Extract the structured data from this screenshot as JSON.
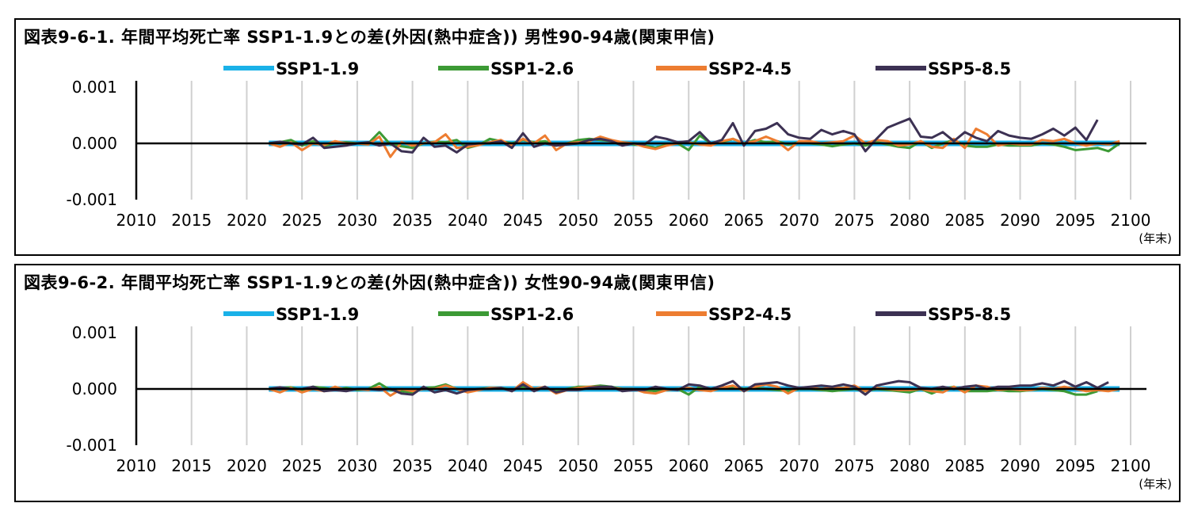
{
  "chart_data": [
    {
      "type": "line",
      "title": "図表9-6-1. 年間平均死亡率 SSP1-1.9との差(外因(熱中症含)) 男性90-94歳(関東甲信)",
      "x_unit": "(年末)",
      "legend_placement": "top",
      "grid": true,
      "xlim": [
        2010,
        2100
      ],
      "ylim": [
        -0.001,
        0.001
      ],
      "x_ticks": [
        "2010",
        "2015",
        "2020",
        "2025",
        "2030",
        "2035",
        "2040",
        "2045",
        "2050",
        "2055",
        "2060",
        "2065",
        "2070",
        "2075",
        "2080",
        "2085",
        "2090",
        "2095",
        "2100"
      ],
      "y_ticks": [
        "0.001",
        "0.000",
        "-0.001"
      ],
      "y_tick_values": [
        0.001,
        0.0,
        -0.001
      ],
      "x_start": 2022,
      "x_step": 1,
      "series": [
        {
          "name": "SSP1-1.9",
          "color": "#1ab1e8",
          "values": [
            0.0,
            0.0,
            0.0,
            0.0,
            0.0,
            0.0,
            0.0,
            0.0,
            0.0,
            0.0,
            0.0,
            0.0,
            0.0,
            0.0,
            0.0,
            0.0,
            0.0,
            0.0,
            0.0,
            0.0,
            0.0,
            0.0,
            0.0,
            0.0,
            0.0,
            0.0,
            0.0,
            0.0,
            0.0,
            0.0,
            0.0,
            0.0,
            0.0,
            0.0,
            0.0,
            0.0,
            0.0,
            0.0,
            0.0,
            0.0,
            0.0,
            0.0,
            0.0,
            0.0,
            0.0,
            0.0,
            0.0,
            0.0,
            0.0,
            0.0,
            0.0,
            0.0,
            0.0,
            0.0,
            0.0,
            0.0,
            0.0,
            0.0,
            0.0,
            0.0,
            0.0,
            0.0,
            0.0,
            0.0,
            0.0,
            0.0,
            0.0,
            0.0,
            0.0,
            0.0,
            0.0,
            0.0,
            0.0,
            0.0,
            0.0,
            0.0,
            0.0,
            0.0
          ]
        },
        {
          "name": "SSP1-2.6",
          "color": "#3c9a35",
          "values": [
            0.0,
            2e-05,
            6e-05,
            -4e-05,
            4e-05,
            -5e-05,
            1e-05,
            2e-05,
            0.0,
            0.0,
            0.0002,
            -2e-05,
            -5e-05,
            -8e-05,
            0.0,
            3e-05,
            2e-05,
            6e-05,
            -8e-05,
            -3e-05,
            8e-05,
            4e-05,
            0.0,
            6e-05,
            2e-05,
            4e-05,
            -4e-05,
            0.0,
            6e-05,
            8e-05,
            6e-05,
            4e-05,
            2e-05,
            -2e-05,
            -4e-05,
            -8e-05,
            -2e-05,
            0.0,
            -0.00012,
            0.00014,
            0.0,
            2e-05,
            8e-05,
            0.0,
            6e-05,
            2e-05,
            4e-05,
            -2e-05,
            2e-05,
            0.0,
            -2e-05,
            -5e-05,
            -2e-05,
            0.0,
            -4e-05,
            2e-05,
            -2e-05,
            -6e-05,
            -8e-05,
            4e-05,
            -8e-05,
            0.0,
            6e-05,
            -4e-05,
            -6e-05,
            -6e-05,
            -2e-05,
            -4e-05,
            -4e-05,
            -4e-05,
            0.0,
            -2e-05,
            -6e-05,
            -0.00012,
            -0.0001,
            -8e-05,
            -0.00014,
            0.0
          ]
        },
        {
          "name": "SSP2-4.5",
          "color": "#ed7d31",
          "values": [
            0.0,
            -6e-05,
            2e-05,
            -0.00012,
            0.0,
            -3e-05,
            4e-05,
            0.0,
            0.0,
            -2e-05,
            0.00012,
            -0.00024,
            2e-05,
            -4e-05,
            0.0,
            2e-05,
            0.00016,
            -8e-05,
            -6e-05,
            -3e-05,
            2e-05,
            6e-05,
            -4e-05,
            8e-05,
            0.0,
            0.00014,
            -0.00012,
            0.0,
            2e-05,
            4e-05,
            0.00012,
            6e-05,
            2e-05,
            0.0,
            -6e-05,
            -0.0001,
            -4e-05,
            0.0,
            2e-05,
            -2e-05,
            -4e-05,
            4e-05,
            8e-05,
            0.0,
            4e-05,
            0.00012,
            4e-05,
            -0.00012,
            4e-05,
            4e-05,
            0.0,
            2e-05,
            4e-05,
            0.00014,
            0.0,
            6e-05,
            4e-05,
            -4e-05,
            -2e-05,
            4e-05,
            -6e-05,
            -8e-05,
            8e-05,
            -8e-05,
            0.00026,
            0.00016,
            -4e-05,
            0.0,
            -2e-05,
            -2e-05,
            6e-05,
            4e-05,
            8e-05,
            0.0,
            -4e-05,
            0.0,
            -2e-05,
            4e-05
          ]
        },
        {
          "name": "SSP5-8.5",
          "color": "#3c3153",
          "values": [
            0.0,
            3e-05,
            0.0,
            -2e-05,
            0.0001,
            -8e-05,
            -6e-05,
            -4e-05,
            0.0,
            2e-05,
            -4e-05,
            0.0,
            -0.00014,
            -0.00016,
            0.0001,
            -6e-05,
            -4e-05,
            -0.00016,
            -2e-05,
            0.0,
            0.0,
            4e-05,
            -8e-05,
            0.00018,
            -6e-05,
            0.0,
            -4e-05,
            -2e-05,
            0.0,
            6e-05,
            8e-05,
            4e-05,
            -4e-05,
            0.0,
            -2e-05,
            0.00012,
            8e-05,
            2e-05,
            4e-05,
            0.0002,
            0.0,
            6e-05,
            0.00036,
            -4e-05,
            0.00022,
            0.00026,
            0.00036,
            0.00016,
            0.0001,
            8e-05,
            0.00024,
            0.00016,
            0.00022,
            0.00016,
            -0.00014,
            8e-05,
            0.00028,
            0.00036,
            0.00044,
            0.00012,
            0.0001,
            0.0002,
            4e-05,
            0.0002,
            0.0001,
            4e-05,
            0.00022,
            0.00014,
            0.0001,
            8e-05,
            0.00016,
            0.00026,
            0.00014,
            0.00028,
            6e-05,
            0.00042
          ]
        }
      ]
    },
    {
      "type": "line",
      "title": "図表9-6-2. 年間平均死亡率 SSP1-1.9との差(外因(熱中症含)) 女性90-94歳(関東甲信)",
      "x_unit": "(年末)",
      "legend_placement": "top",
      "grid": true,
      "xlim": [
        2010,
        2100
      ],
      "ylim": [
        -0.001,
        0.001
      ],
      "x_ticks": [
        "2010",
        "2015",
        "2020",
        "2025",
        "2030",
        "2035",
        "2040",
        "2045",
        "2050",
        "2055",
        "2060",
        "2065",
        "2070",
        "2075",
        "2080",
        "2085",
        "2090",
        "2095",
        "2100"
      ],
      "y_ticks": [
        "0.001",
        "0.000",
        "-0.001"
      ],
      "y_tick_values": [
        0.001,
        0.0,
        -0.001
      ],
      "x_start": 2022,
      "x_step": 1,
      "series": [
        {
          "name": "SSP1-1.9",
          "color": "#1ab1e8",
          "values": [
            0.0,
            0.0,
            0.0,
            0.0,
            0.0,
            0.0,
            0.0,
            0.0,
            0.0,
            0.0,
            0.0,
            0.0,
            0.0,
            0.0,
            0.0,
            0.0,
            0.0,
            0.0,
            0.0,
            0.0,
            0.0,
            0.0,
            0.0,
            0.0,
            0.0,
            0.0,
            0.0,
            0.0,
            0.0,
            0.0,
            0.0,
            0.0,
            0.0,
            0.0,
            0.0,
            0.0,
            0.0,
            0.0,
            0.0,
            0.0,
            0.0,
            0.0,
            0.0,
            0.0,
            0.0,
            0.0,
            0.0,
            0.0,
            0.0,
            0.0,
            0.0,
            0.0,
            0.0,
            0.0,
            0.0,
            0.0,
            0.0,
            0.0,
            0.0,
            0.0,
            0.0,
            0.0,
            0.0,
            0.0,
            0.0,
            0.0,
            0.0,
            0.0,
            0.0,
            0.0,
            0.0,
            0.0,
            0.0,
            0.0,
            0.0,
            0.0,
            0.0,
            0.0
          ]
        },
        {
          "name": "SSP1-2.6",
          "color": "#3c9a35",
          "values": [
            0.0,
            2e-05,
            3e-05,
            -2e-05,
            4e-05,
            2e-05,
            -2e-05,
            2e-05,
            -2e-05,
            0.0,
            0.0001,
            -2e-05,
            -4e-05,
            -6e-05,
            2e-05,
            3e-05,
            8e-05,
            0.0,
            -4e-05,
            0.0,
            2e-05,
            2e-05,
            -2e-05,
            4e-05,
            0.0,
            2e-05,
            -4e-05,
            0.0,
            4e-05,
            4e-05,
            6e-05,
            4e-05,
            0.0,
            -2e-05,
            -2e-05,
            -4e-05,
            -2e-05,
            0.0,
            -0.0001,
            4e-05,
            0.0,
            2e-05,
            4e-05,
            0.0,
            2e-05,
            0.0,
            -2e-05,
            -4e-05,
            0.0,
            0.0,
            -2e-05,
            -4e-05,
            -2e-05,
            0.0,
            -4e-05,
            0.0,
            -2e-05,
            -4e-05,
            -6e-05,
            0.0,
            -8e-05,
            0.0,
            4e-05,
            -4e-05,
            -4e-05,
            -4e-05,
            -2e-05,
            -4e-05,
            -4e-05,
            -2e-05,
            0.0,
            -2e-05,
            -4e-05,
            -0.0001,
            -0.0001,
            -4e-05
          ]
        },
        {
          "name": "SSP2-4.5",
          "color": "#ed7d31",
          "values": [
            0.0,
            -6e-05,
            2e-05,
            -6e-05,
            0.0,
            -4e-05,
            4e-05,
            -2e-05,
            0.0,
            -2e-05,
            4e-05,
            -0.00012,
            0.0,
            -4e-05,
            0.0,
            0.0,
            6e-05,
            0.0,
            -6e-05,
            -2e-05,
            2e-05,
            2e-05,
            -4e-05,
            0.00012,
            0.0,
            4e-05,
            -8e-05,
            -2e-05,
            2e-05,
            4e-05,
            4e-05,
            2e-05,
            0.0,
            0.0,
            -6e-05,
            -8e-05,
            -2e-05,
            0.0,
            2e-05,
            -2e-05,
            -4e-05,
            2e-05,
            6e-05,
            -4e-05,
            4e-05,
            8e-05,
            4e-05,
            -8e-05,
            2e-05,
            2e-05,
            0.0,
            2e-05,
            2e-05,
            6e-05,
            -4e-05,
            2e-05,
            0.0,
            -2e-05,
            -2e-05,
            0.0,
            -4e-05,
            -6e-05,
            4e-05,
            -6e-05,
            6e-05,
            4e-05,
            -2e-05,
            0.0,
            -2e-05,
            -2e-05,
            2e-05,
            0.0,
            4e-05,
            0.0,
            -4e-05,
            -2e-05,
            -4e-05,
            0.0
          ]
        },
        {
          "name": "SSP5-8.5",
          "color": "#3c3153",
          "values": [
            0.0,
            3e-05,
            0.0,
            0.0,
            4e-05,
            -4e-05,
            -2e-05,
            -4e-05,
            0.0,
            0.0,
            -2e-05,
            0.0,
            -8e-05,
            -0.0001,
            4e-05,
            -6e-05,
            -2e-05,
            -8e-05,
            -2e-05,
            0.0,
            0.0,
            2e-05,
            -4e-05,
            8e-05,
            -4e-05,
            4e-05,
            -6e-05,
            -2e-05,
            -2e-05,
            2e-05,
            4e-05,
            4e-05,
            -4e-05,
            -2e-05,
            -2e-05,
            4e-05,
            0.0,
            -2e-05,
            8e-05,
            6e-05,
            0.0,
            6e-05,
            0.00014,
            -4e-05,
            8e-05,
            0.0001,
            0.00012,
            6e-05,
            2e-05,
            4e-05,
            6e-05,
            4e-05,
            8e-05,
            4e-05,
            -0.0001,
            6e-05,
            0.0001,
            0.00014,
            0.00012,
            2e-05,
            0.0,
            4e-05,
            0.0,
            4e-05,
            6e-05,
            0.0,
            4e-05,
            4e-05,
            6e-05,
            6e-05,
            0.0001,
            6e-05,
            0.00014,
            4e-05,
            0.00012,
            2e-05,
            0.00012
          ]
        }
      ]
    }
  ]
}
